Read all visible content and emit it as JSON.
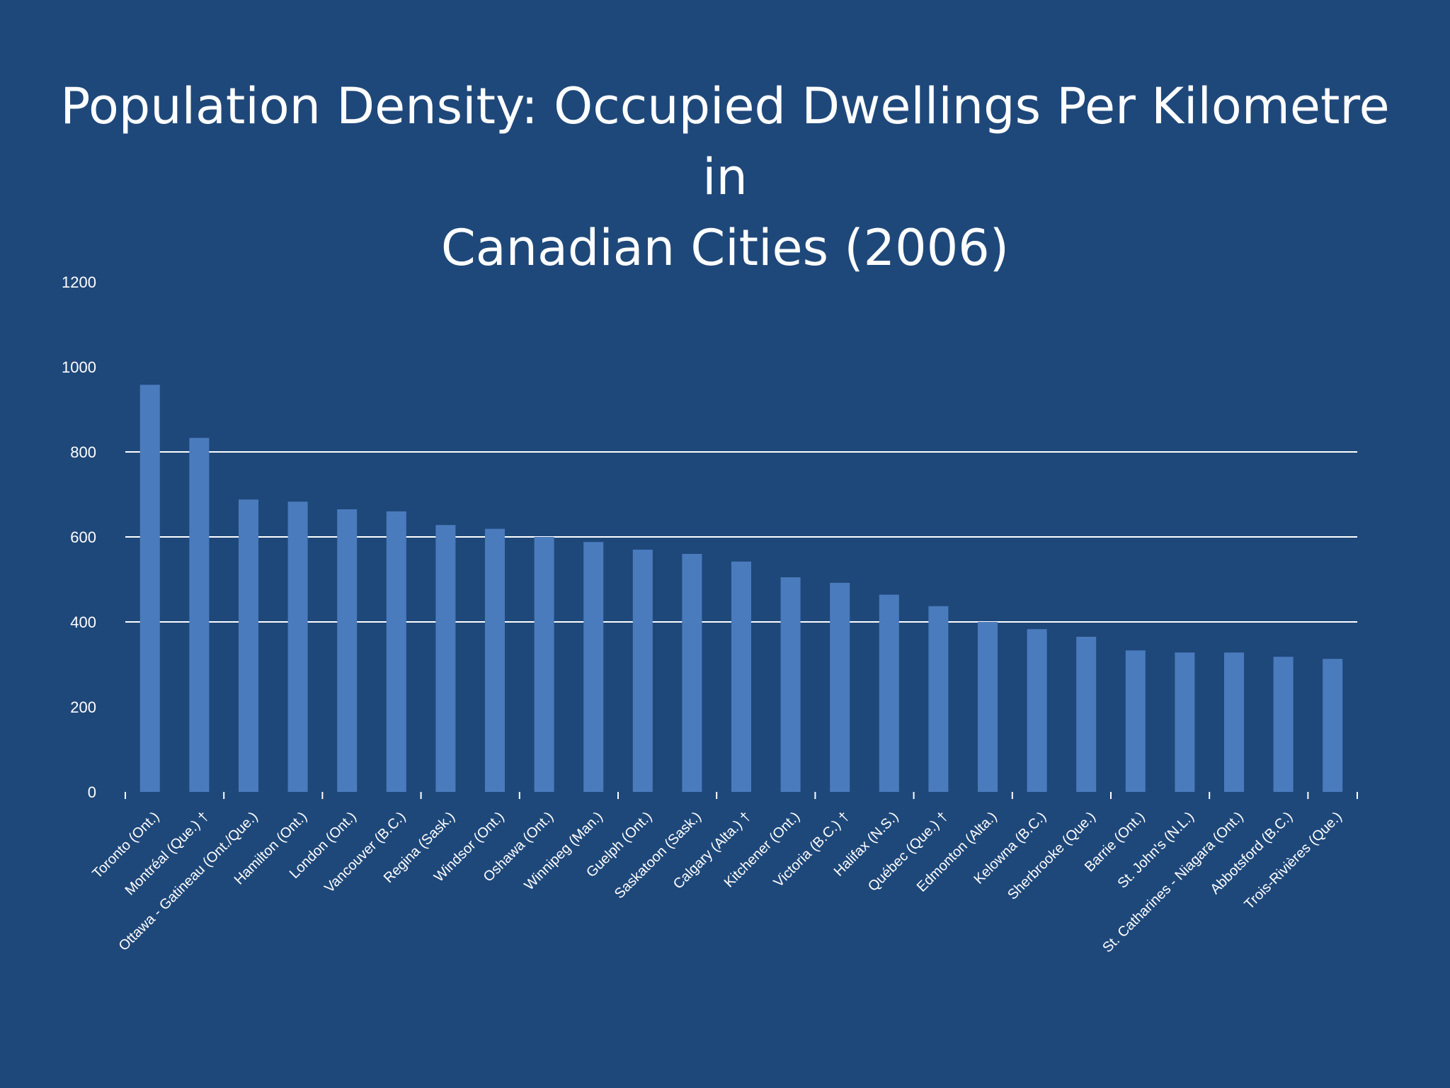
{
  "slide": {
    "title_line1": "Population Density: Occupied Dwellings Per Kilometre in",
    "title_line2": "Canadian Cities (2006)"
  },
  "chart_data": {
    "type": "bar",
    "title": "Population Density: Occupied Dwellings Per Kilometre in Canadian Cities (2006)",
    "categories": [
      "Toronto (Ont.)",
      "Montréal (Que.) †",
      "Ottawa - Gatineau (Ont./Que.)",
      "Hamilton (Ont.)",
      "London (Ont.)",
      "Vancouver (B.C.)",
      "Regina (Sask.)",
      "Windsor (Ont.)",
      "Oshawa (Ont.)",
      "Winnipeg (Man.)",
      "Guelph (Ont.)",
      "Saskatoon (Sask.)",
      "Calgary (Alta.) †",
      "Kitchener (Ont.)",
      "Victoria (B.C.) †",
      "Halifax (N.S.)",
      "Québec (Que.) †",
      "Edmonton (Alta.)",
      "Kelowna (B.C.)",
      "Sherbrooke (Que.)",
      "Barrie (Ont.)",
      "St. John's (N.L.)",
      "St. Catharines - Niagara (Ont.)",
      "Abbotsford (B.C.)",
      "Trois-Rivières (Que.)"
    ],
    "values": [
      958,
      833,
      688,
      683,
      665,
      660,
      628,
      619,
      600,
      588,
      570,
      560,
      542,
      505,
      492,
      464,
      437,
      400,
      383,
      365,
      333,
      328,
      328,
      318,
      313
    ],
    "ylim": [
      0,
      1200
    ],
    "yticks": [
      0,
      200,
      400,
      600,
      800,
      1000,
      1200
    ],
    "gridlines_at": [
      400,
      600,
      800
    ],
    "colors": {
      "background": "#1f487a",
      "bar": "#4a7bbd",
      "axis": "#ffffff",
      "text": "#ffffff"
    },
    "legend": "none"
  }
}
